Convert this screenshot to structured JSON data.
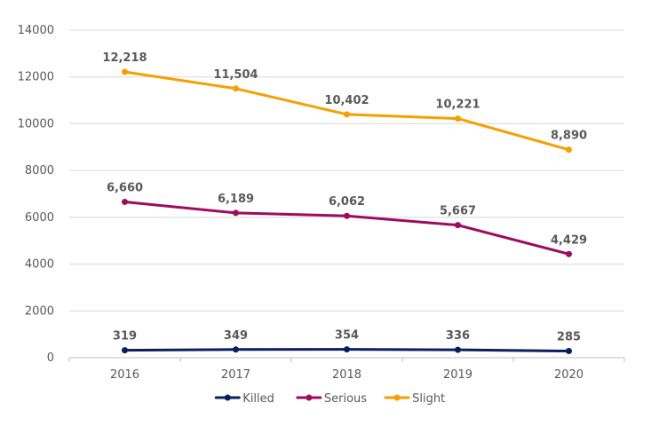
{
  "chart_data": {
    "type": "line",
    "categories": [
      "2016",
      "2017",
      "2018",
      "2019",
      "2020"
    ],
    "series": [
      {
        "name": "Killed",
        "values": [
          319,
          349,
          354,
          336,
          285
        ],
        "labels": [
          "319",
          "349",
          "354",
          "336",
          "285"
        ],
        "color": "#0b1f5c"
      },
      {
        "name": "Serious",
        "values": [
          6660,
          6189,
          6062,
          5667,
          4429
        ],
        "labels": [
          "6,660",
          "6,189",
          "6,062",
          "5,667",
          "4,429"
        ],
        "color": "#9e0b5f"
      },
      {
        "name": "Slight",
        "values": [
          12218,
          11504,
          10402,
          10221,
          8890
        ],
        "labels": [
          "12,218",
          "11,504",
          "10,402",
          "10,221",
          "8,890"
        ],
        "color": "#f5a000"
      }
    ],
    "ylim": [
      0,
      14000
    ],
    "yticks": [
      0,
      2000,
      4000,
      6000,
      8000,
      10000,
      12000,
      14000
    ],
    "grid": true,
    "legend": "bottom"
  }
}
